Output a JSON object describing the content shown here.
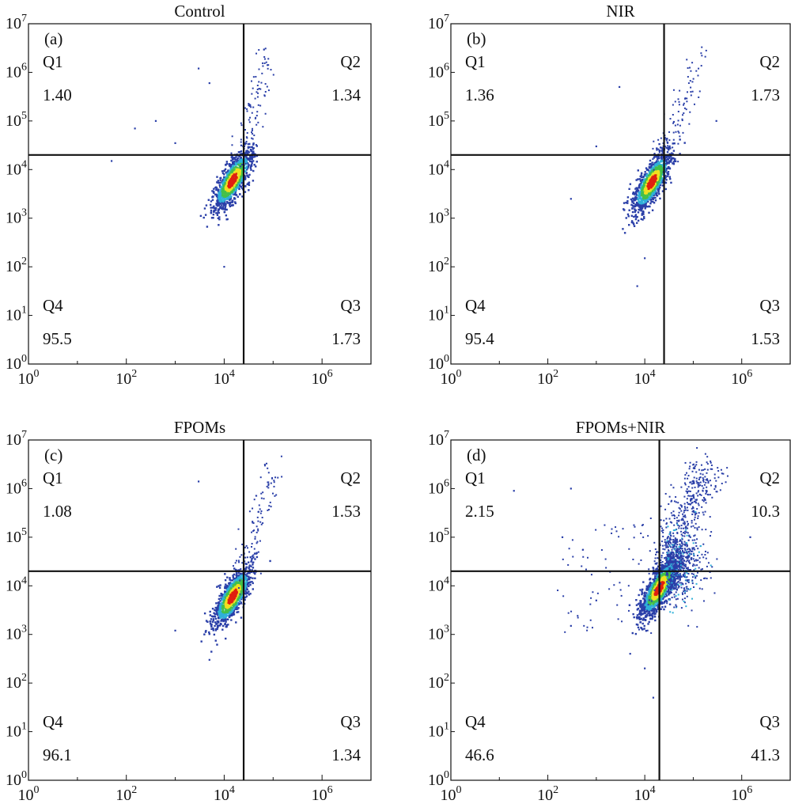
{
  "colors": {
    "axis": "#111111",
    "density_low": "#2a3fa8",
    "density_mid1": "#2fb0d8",
    "density_mid2": "#44c04a",
    "density_mid3": "#f0e020",
    "density_high": "#e02010"
  },
  "chart_data": [
    {
      "type": "scatter",
      "title": "Control",
      "panel_label": "(a)",
      "xlabel": "",
      "ylabel": "",
      "x_scale": "log10",
      "y_scale": "log10",
      "xlim": [
        1,
        10000000
      ],
      "ylim": [
        1,
        10000000
      ],
      "x_ticks": [
        {
          "base": "10",
          "exp": "0"
        },
        {
          "base": "10",
          "exp": "2"
        },
        {
          "base": "10",
          "exp": "4"
        },
        {
          "base": "10",
          "exp": "6"
        }
      ],
      "y_ticks": [
        {
          "base": "10",
          "exp": "0"
        },
        {
          "base": "10",
          "exp": "1"
        },
        {
          "base": "10",
          "exp": "2"
        },
        {
          "base": "10",
          "exp": "3"
        },
        {
          "base": "10",
          "exp": "4"
        },
        {
          "base": "10",
          "exp": "5"
        },
        {
          "base": "10",
          "exp": "6"
        },
        {
          "base": "10",
          "exp": "7"
        }
      ],
      "gate": {
        "x": 25000,
        "y": 20000
      },
      "quadrants": [
        {
          "name": "Q1",
          "value": "1.40"
        },
        {
          "name": "Q2",
          "value": "1.34"
        },
        {
          "name": "Q3",
          "value": "1.73"
        },
        {
          "name": "Q4",
          "value": "95.5"
        }
      ],
      "population_center": {
        "x": 15000,
        "y": 6000
      },
      "upper_tail_end": {
        "x": 80000,
        "y": 3000000
      },
      "points": [
        {
          "x": 50,
          "y": 15000
        },
        {
          "x": 150,
          "y": 70000
        },
        {
          "x": 400,
          "y": 100000
        },
        {
          "x": 1000,
          "y": 35000
        },
        {
          "x": 3000,
          "y": 1200000
        },
        {
          "x": 5000,
          "y": 600000
        },
        {
          "x": 10000,
          "y": 100
        }
      ]
    },
    {
      "type": "scatter",
      "title": "NIR",
      "panel_label": "(b)",
      "xlabel": "",
      "ylabel": "",
      "x_scale": "log10",
      "y_scale": "log10",
      "xlim": [
        1,
        10000000
      ],
      "ylim": [
        1,
        10000000
      ],
      "x_ticks": [
        {
          "base": "10",
          "exp": "0"
        },
        {
          "base": "10",
          "exp": "2"
        },
        {
          "base": "10",
          "exp": "4"
        },
        {
          "base": "10",
          "exp": "6"
        }
      ],
      "y_ticks": [
        {
          "base": "10",
          "exp": "0"
        },
        {
          "base": "10",
          "exp": "1"
        },
        {
          "base": "10",
          "exp": "2"
        },
        {
          "base": "10",
          "exp": "3"
        },
        {
          "base": "10",
          "exp": "4"
        },
        {
          "base": "10",
          "exp": "5"
        },
        {
          "base": "10",
          "exp": "6"
        },
        {
          "base": "10",
          "exp": "7"
        }
      ],
      "gate": {
        "x": 25000,
        "y": 20000
      },
      "quadrants": [
        {
          "name": "Q1",
          "value": "1.36"
        },
        {
          "name": "Q2",
          "value": "1.73"
        },
        {
          "name": "Q3",
          "value": "1.53"
        },
        {
          "name": "Q4",
          "value": "95.4"
        }
      ],
      "population_center": {
        "x": 14000,
        "y": 5500
      },
      "upper_tail_end": {
        "x": 150000,
        "y": 3000000
      },
      "points": [
        {
          "x": 300,
          "y": 2500
        },
        {
          "x": 1000,
          "y": 30000
        },
        {
          "x": 3000,
          "y": 500000
        },
        {
          "x": 7000,
          "y": 40
        },
        {
          "x": 10000,
          "y": 150
        },
        {
          "x": 300000,
          "y": 100000
        }
      ]
    },
    {
      "type": "scatter",
      "title": "FPOMs",
      "panel_label": "(c)",
      "xlabel": "",
      "ylabel": "",
      "x_scale": "log10",
      "y_scale": "log10",
      "xlim": [
        1,
        10000000
      ],
      "ylim": [
        1,
        10000000
      ],
      "x_ticks": [
        {
          "base": "10",
          "exp": "0"
        },
        {
          "base": "10",
          "exp": "2"
        },
        {
          "base": "10",
          "exp": "4"
        },
        {
          "base": "10",
          "exp": "6"
        }
      ],
      "y_ticks": [
        {
          "base": "10",
          "exp": "0"
        },
        {
          "base": "10",
          "exp": "1"
        },
        {
          "base": "10",
          "exp": "2"
        },
        {
          "base": "10",
          "exp": "3"
        },
        {
          "base": "10",
          "exp": "4"
        },
        {
          "base": "10",
          "exp": "5"
        },
        {
          "base": "10",
          "exp": "6"
        },
        {
          "base": "10",
          "exp": "7"
        }
      ],
      "gate": {
        "x": 25000,
        "y": 20000
      },
      "quadrants": [
        {
          "name": "Q1",
          "value": "1.08"
        },
        {
          "name": "Q2",
          "value": "1.53"
        },
        {
          "name": "Q3",
          "value": "1.34"
        },
        {
          "name": "Q4",
          "value": "96.1"
        }
      ],
      "population_center": {
        "x": 15000,
        "y": 6000
      },
      "upper_tail_end": {
        "x": 120000,
        "y": 3000000
      },
      "points": [
        {
          "x": 1000,
          "y": 1200
        },
        {
          "x": 3000,
          "y": 1400000
        },
        {
          "x": 5000,
          "y": 300
        }
      ]
    },
    {
      "type": "scatter",
      "title": "FPOMs+NIR",
      "panel_label": "(d)",
      "xlabel": "",
      "ylabel": "",
      "x_scale": "log10",
      "y_scale": "log10",
      "xlim": [
        1,
        10000000
      ],
      "ylim": [
        1,
        10000000
      ],
      "x_ticks": [
        {
          "base": "10",
          "exp": "0"
        },
        {
          "base": "10",
          "exp": "2"
        },
        {
          "base": "10",
          "exp": "4"
        },
        {
          "base": "10",
          "exp": "6"
        }
      ],
      "y_ticks": [
        {
          "base": "10",
          "exp": "0"
        },
        {
          "base": "10",
          "exp": "1"
        },
        {
          "base": "10",
          "exp": "2"
        },
        {
          "base": "10",
          "exp": "3"
        },
        {
          "base": "10",
          "exp": "4"
        },
        {
          "base": "10",
          "exp": "5"
        },
        {
          "base": "10",
          "exp": "6"
        },
        {
          "base": "10",
          "exp": "7"
        }
      ],
      "gate": {
        "x": 20000,
        "y": 20000
      },
      "quadrants": [
        {
          "name": "Q1",
          "value": "2.15"
        },
        {
          "name": "Q2",
          "value": "10.3"
        },
        {
          "name": "Q3",
          "value": "41.3"
        },
        {
          "name": "Q4",
          "value": "46.6"
        }
      ],
      "population_center": {
        "x": 20000,
        "y": 9000
      },
      "upper_tail_end": {
        "x": 200000,
        "y": 3000000
      },
      "points": [
        {
          "x": 20,
          "y": 900000
        },
        {
          "x": 200,
          "y": 100000
        },
        {
          "x": 300,
          "y": 1000000
        },
        {
          "x": 1000,
          "y": 5000
        },
        {
          "x": 300,
          "y": 1500
        },
        {
          "x": 5000,
          "y": 400
        },
        {
          "x": 10000,
          "y": 200
        },
        {
          "x": 15000,
          "y": 50
        },
        {
          "x": 1500000,
          "y": 100000
        }
      ]
    }
  ]
}
